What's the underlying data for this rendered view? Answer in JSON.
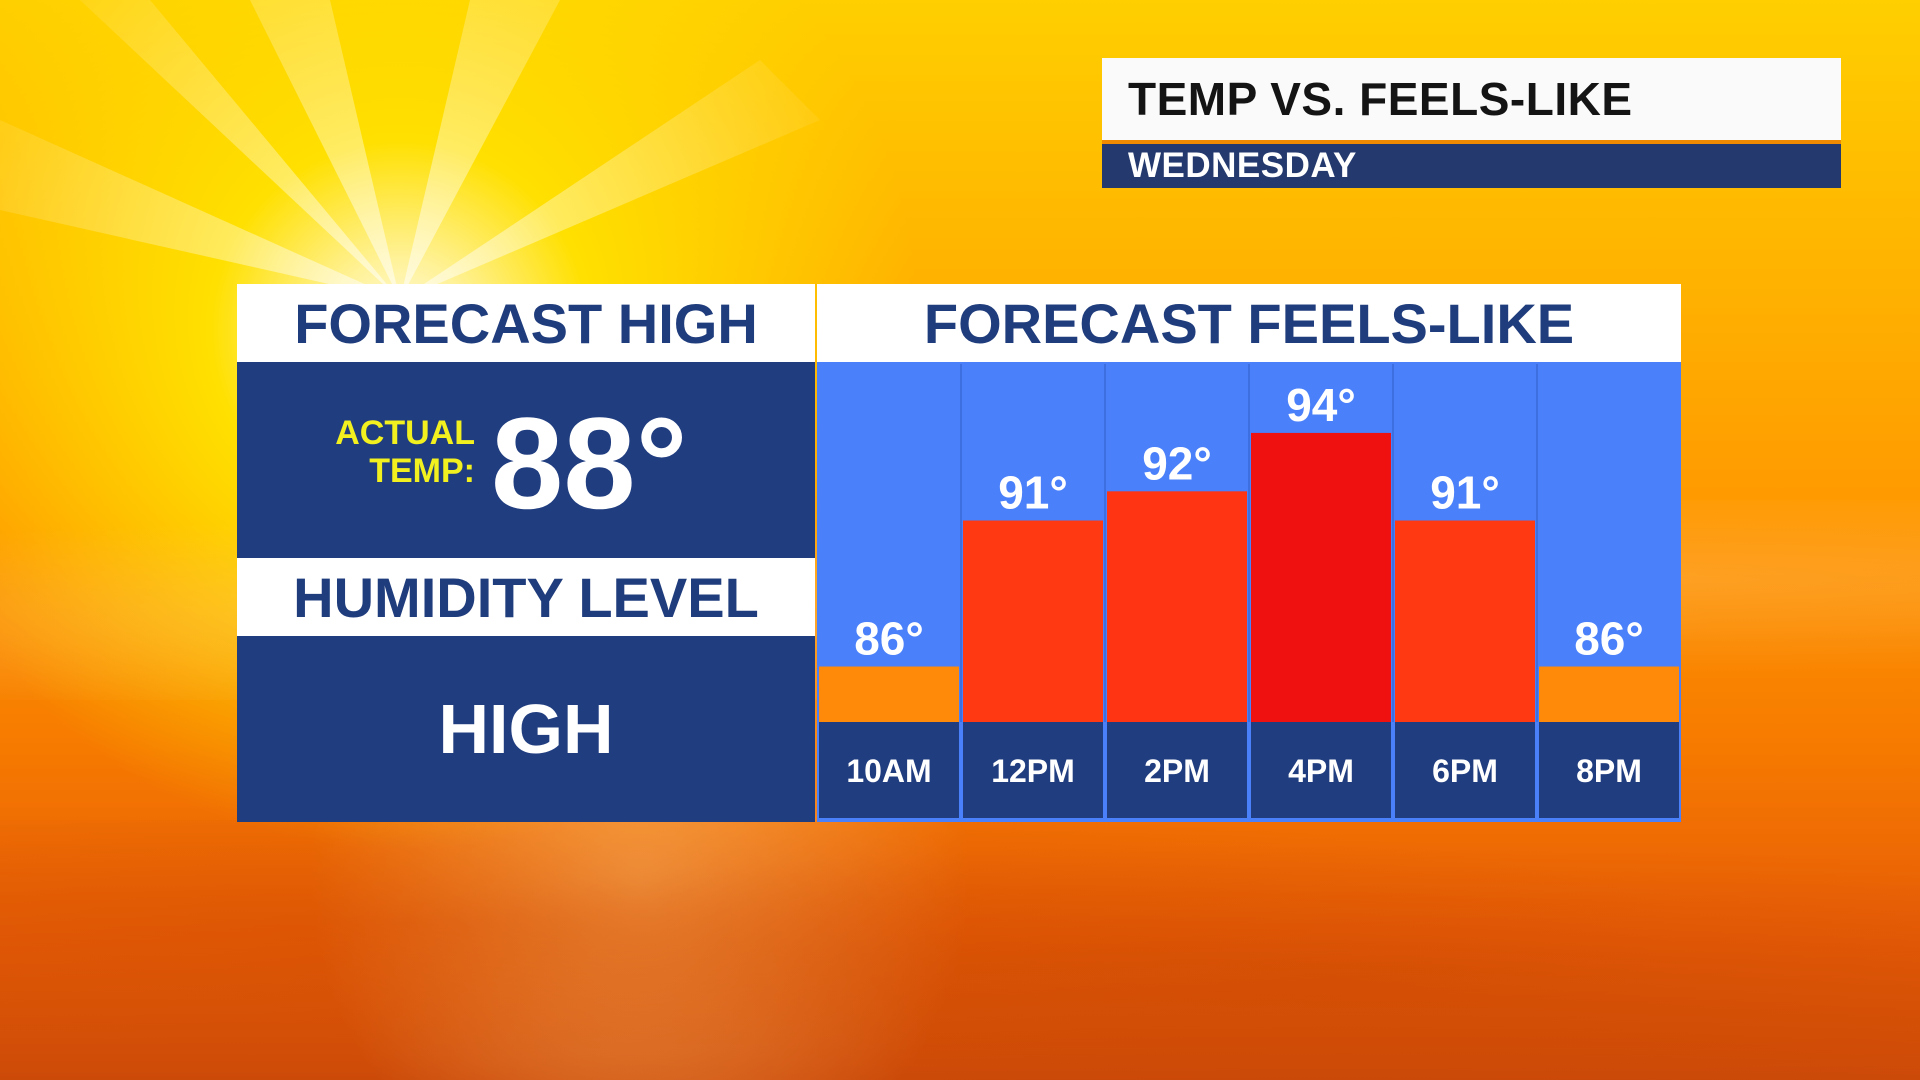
{
  "header": {
    "title": "TEMP VS. FEELS-LIKE",
    "subtitle": "WEDNESDAY"
  },
  "forecast_high": {
    "heading": "FORECAST HIGH",
    "actual_label_line1": "ACTUAL",
    "actual_label_line2": "TEMP:",
    "actual_value": "88°"
  },
  "humidity": {
    "heading": "HUMIDITY LEVEL",
    "value": "HIGH"
  },
  "colors": {
    "navy": "#203d80",
    "chart_background": "#4a80fa",
    "bar_86": "#ff8a0a",
    "bar_91": "#ff3a12",
    "bar_92": "#ff3412",
    "bar_94": "#ef1010",
    "label_text": "#ffffff",
    "accent_yellow": "#f2f01e"
  },
  "chart_data": {
    "type": "bar",
    "title": "FORECAST FEELS-LIKE",
    "categories": [
      "10AM",
      "12PM",
      "2PM",
      "4PM",
      "6PM",
      "8PM"
    ],
    "values": [
      86,
      91,
      92,
      94,
      91,
      86
    ],
    "data_labels": [
      "86°",
      "91°",
      "92°",
      "94°",
      "91°",
      "86°"
    ],
    "bar_colors": [
      "#ff8a0a",
      "#ff3a12",
      "#ff3412",
      "#ef1010",
      "#ff3a12",
      "#ff8a0a"
    ],
    "xlabel": "",
    "ylabel": "",
    "grid": false,
    "legend": "none"
  }
}
